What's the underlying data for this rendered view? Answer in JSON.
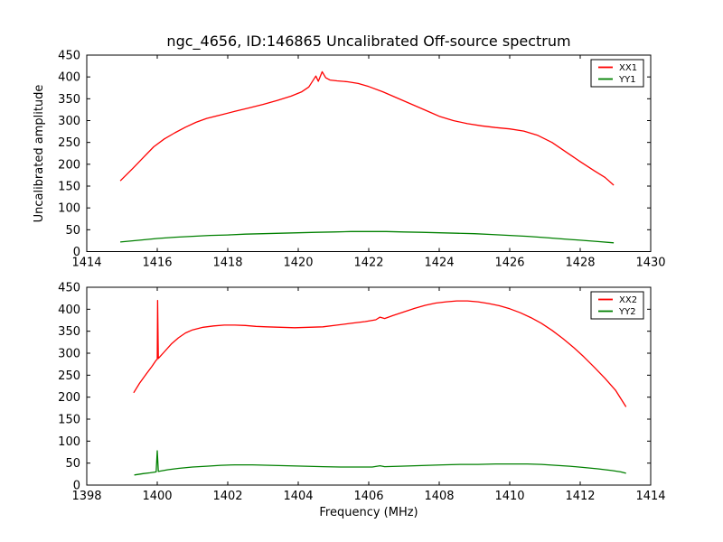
{
  "figure": {
    "title": "ngc_4656, ID:146865 Uncalibrated Off-source spectrum",
    "background": "#ffffff",
    "frame_color": "#000000"
  },
  "chart_data": [
    {
      "type": "line",
      "xlabel": "",
      "ylabel": "Uncalibrated amplitude",
      "xlim": [
        1414,
        1430
      ],
      "ylim": [
        0,
        450
      ],
      "xticks": [
        1414,
        1416,
        1418,
        1420,
        1422,
        1424,
        1426,
        1428,
        1430
      ],
      "yticks": [
        0,
        50,
        100,
        150,
        200,
        250,
        300,
        350,
        400,
        450
      ],
      "grid": false,
      "legend": {
        "position": "upper right",
        "entries": [
          {
            "label": "XX1",
            "color": "#ff0000"
          },
          {
            "label": "YY1",
            "color": "#008000"
          }
        ]
      },
      "series": [
        {
          "name": "XX1",
          "color": "#ff0000",
          "points": [
            [
              1414.95,
              162
            ],
            [
              1415.3,
              190
            ],
            [
              1415.6,
              215
            ],
            [
              1415.9,
              240
            ],
            [
              1416.2,
              258
            ],
            [
              1416.5,
              272
            ],
            [
              1416.8,
              285
            ],
            [
              1417.1,
              296
            ],
            [
              1417.4,
              305
            ],
            [
              1417.8,
              313
            ],
            [
              1418.2,
              321
            ],
            [
              1418.6,
              329
            ],
            [
              1419.0,
              337
            ],
            [
              1419.4,
              346
            ],
            [
              1419.8,
              356
            ],
            [
              1420.1,
              366
            ],
            [
              1420.3,
              377
            ],
            [
              1420.5,
              402
            ],
            [
              1420.57,
              390
            ],
            [
              1420.68,
              412
            ],
            [
              1420.78,
              398
            ],
            [
              1420.9,
              393
            ],
            [
              1421.1,
              391
            ],
            [
              1421.4,
              389
            ],
            [
              1421.7,
              385
            ],
            [
              1422.0,
              378
            ],
            [
              1422.4,
              366
            ],
            [
              1422.8,
              352
            ],
            [
              1423.2,
              338
            ],
            [
              1423.6,
              324
            ],
            [
              1424.0,
              310
            ],
            [
              1424.4,
              300
            ],
            [
              1424.8,
              293
            ],
            [
              1425.2,
              288
            ],
            [
              1425.6,
              284
            ],
            [
              1426.0,
              281
            ],
            [
              1426.4,
              276
            ],
            [
              1426.8,
              266
            ],
            [
              1427.2,
              250
            ],
            [
              1427.6,
              228
            ],
            [
              1428.0,
              206
            ],
            [
              1428.4,
              185
            ],
            [
              1428.7,
              170
            ],
            [
              1428.95,
              152
            ]
          ]
        },
        {
          "name": "YY1",
          "color": "#008000",
          "points": [
            [
              1414.95,
              22
            ],
            [
              1415.5,
              26
            ],
            [
              1416.0,
              30
            ],
            [
              1416.5,
              33
            ],
            [
              1417.0,
              35
            ],
            [
              1417.5,
              37
            ],
            [
              1418.0,
              38
            ],
            [
              1418.5,
              40
            ],
            [
              1419.0,
              41
            ],
            [
              1419.5,
              42
            ],
            [
              1420.0,
              43
            ],
            [
              1420.5,
              44
            ],
            [
              1421.0,
              45
            ],
            [
              1421.5,
              46
            ],
            [
              1422.0,
              46
            ],
            [
              1422.5,
              46
            ],
            [
              1423.0,
              45
            ],
            [
              1423.5,
              44
            ],
            [
              1424.0,
              43
            ],
            [
              1424.5,
              42
            ],
            [
              1425.0,
              41
            ],
            [
              1425.5,
              39
            ],
            [
              1426.0,
              37
            ],
            [
              1426.5,
              35
            ],
            [
              1427.0,
              32
            ],
            [
              1427.5,
              29
            ],
            [
              1428.0,
              26
            ],
            [
              1428.5,
              23
            ],
            [
              1428.95,
              20
            ]
          ]
        }
      ]
    },
    {
      "type": "line",
      "xlabel": "Frequency (MHz)",
      "ylabel": "",
      "xlim": [
        1398,
        1414
      ],
      "ylim": [
        0,
        450
      ],
      "xticks": [
        1398,
        1400,
        1402,
        1404,
        1406,
        1408,
        1410,
        1412,
        1414
      ],
      "yticks": [
        0,
        50,
        100,
        150,
        200,
        250,
        300,
        350,
        400,
        450
      ],
      "grid": false,
      "legend": {
        "position": "upper right",
        "entries": [
          {
            "label": "XX2",
            "color": "#ff0000"
          },
          {
            "label": "YY2",
            "color": "#008000"
          }
        ]
      },
      "series": [
        {
          "name": "XX2",
          "color": "#ff0000",
          "points": [
            [
              1399.33,
              210
            ],
            [
              1399.5,
              232
            ],
            [
              1399.7,
              254
            ],
            [
              1399.85,
              270
            ],
            [
              1399.97,
              284
            ],
            [
              1400.0,
              286
            ],
            [
              1400.01,
              420
            ],
            [
              1400.03,
              288
            ],
            [
              1400.2,
              303
            ],
            [
              1400.4,
              321
            ],
            [
              1400.6,
              335
            ],
            [
              1400.8,
              346
            ],
            [
              1401.0,
              353
            ],
            [
              1401.3,
              359
            ],
            [
              1401.6,
              362
            ],
            [
              1401.9,
              364
            ],
            [
              1402.2,
              364
            ],
            [
              1402.5,
              363
            ],
            [
              1402.8,
              361
            ],
            [
              1403.1,
              360
            ],
            [
              1403.5,
              359
            ],
            [
              1403.9,
              358
            ],
            [
              1404.3,
              359
            ],
            [
              1404.7,
              360
            ],
            [
              1405.1,
              364
            ],
            [
              1405.5,
              368
            ],
            [
              1405.9,
              372
            ],
            [
              1406.2,
              376
            ],
            [
              1406.32,
              382
            ],
            [
              1406.45,
              379
            ],
            [
              1406.7,
              386
            ],
            [
              1407.0,
              394
            ],
            [
              1407.3,
              402
            ],
            [
              1407.6,
              409
            ],
            [
              1407.9,
              414
            ],
            [
              1408.2,
              417
            ],
            [
              1408.5,
              419
            ],
            [
              1408.8,
              419
            ],
            [
              1409.1,
              417
            ],
            [
              1409.4,
              413
            ],
            [
              1409.7,
              408
            ],
            [
              1410.0,
              401
            ],
            [
              1410.3,
              392
            ],
            [
              1410.6,
              381
            ],
            [
              1410.9,
              368
            ],
            [
              1411.2,
              352
            ],
            [
              1411.5,
              334
            ],
            [
              1411.8,
              314
            ],
            [
              1412.1,
              292
            ],
            [
              1412.4,
              268
            ],
            [
              1412.7,
              243
            ],
            [
              1413.0,
              216
            ],
            [
              1413.3,
              178
            ]
          ]
        },
        {
          "name": "YY2",
          "color": "#008000",
          "points": [
            [
              1399.35,
              23
            ],
            [
              1399.6,
              26
            ],
            [
              1399.8,
              28
            ],
            [
              1399.97,
              30
            ],
            [
              1400.0,
              78
            ],
            [
              1400.03,
              31
            ],
            [
              1400.3,
              35
            ],
            [
              1400.6,
              38
            ],
            [
              1401.0,
              41
            ],
            [
              1401.4,
              43
            ],
            [
              1401.8,
              45
            ],
            [
              1402.2,
              46
            ],
            [
              1402.7,
              46
            ],
            [
              1403.2,
              45
            ],
            [
              1403.7,
              44
            ],
            [
              1404.2,
              43
            ],
            [
              1404.7,
              42
            ],
            [
              1405.2,
              41
            ],
            [
              1405.7,
              41
            ],
            [
              1406.1,
              41
            ],
            [
              1406.32,
              44
            ],
            [
              1406.45,
              42
            ],
            [
              1406.9,
              43
            ],
            [
              1407.3,
              44
            ],
            [
              1407.7,
              45
            ],
            [
              1408.1,
              46
            ],
            [
              1408.6,
              47
            ],
            [
              1409.1,
              47
            ],
            [
              1409.6,
              48
            ],
            [
              1410.1,
              48
            ],
            [
              1410.5,
              48
            ],
            [
              1410.9,
              47
            ],
            [
              1411.3,
              45
            ],
            [
              1411.7,
              43
            ],
            [
              1412.1,
              40
            ],
            [
              1412.5,
              37
            ],
            [
              1412.9,
              33
            ],
            [
              1413.15,
              30
            ],
            [
              1413.3,
              27
            ]
          ]
        }
      ]
    }
  ]
}
